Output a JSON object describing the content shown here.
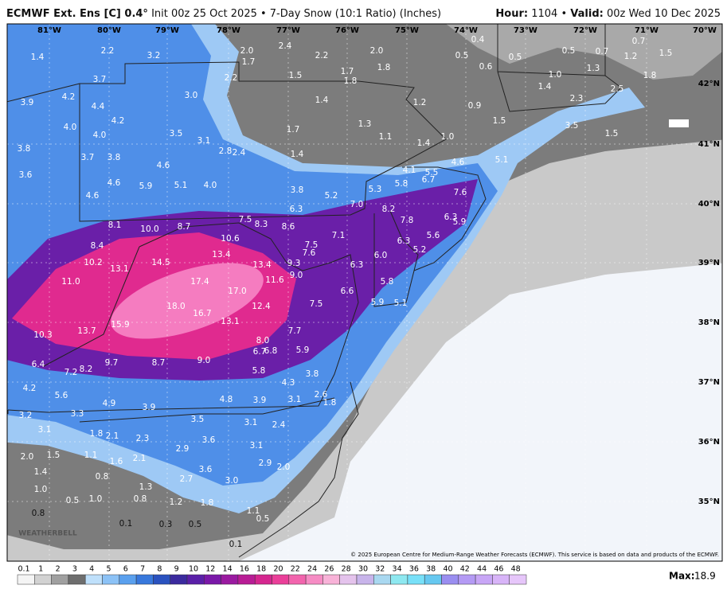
{
  "header": {
    "title_bold": "ECMWF Ext. Ens [C] 0.4°",
    "title": "Init 00z 25 Oct 2025 • 7-Day Snow (10:1 Ratio) (Inches)",
    "hour_label": "Hour:",
    "hour": "1104",
    "separator": "•",
    "valid_label": "Valid:",
    "valid": "00z Wed 10 Dec 2025"
  },
  "map": {
    "longitude_labels": [
      "81°W",
      "80°W",
      "79°W",
      "78°W",
      "77°W",
      "76°W",
      "75°W",
      "74°W",
      "73°W",
      "72°W",
      "71°W",
      "70°W"
    ],
    "latitude_labels": [
      "42°N",
      "41°N",
      "40°N",
      "39°N",
      "38°N",
      "37°N",
      "36°N",
      "35°N"
    ],
    "snow_values": [
      "1.4",
      "2.2",
      "3.2",
      "3.7",
      "2.0",
      "1.7",
      "2.4",
      "2.2",
      "2.0",
      "1.8",
      "1.5",
      "1.7",
      "1.8",
      "2.2",
      "3.9",
      "4.2",
      "4.4",
      "3.0",
      "1.4",
      "1.2",
      "0.9",
      "4.0",
      "4.2",
      "4.0",
      "3.5",
      "3.1",
      "2.8",
      "2.4",
      "1.7",
      "1.3",
      "1.1",
      "1.0",
      "1.4",
      "1.4",
      "3.8",
      "3.7",
      "3.8",
      "4.6",
      "3.6",
      "4.6",
      "5.9",
      "5.1",
      "4.0",
      "3.8",
      "5.2",
      "5.3",
      "5.8",
      "6.7",
      "5.5",
      "4.1",
      "4.6",
      "5.1",
      "7.6",
      "4.6",
      "6.3",
      "7.0",
      "8.2",
      "7.8",
      "6.3",
      "5.9",
      "7.5",
      "8.3",
      "8.6",
      "10.0",
      "8.7",
      "10.6",
      "8.1",
      "7.1",
      "7.5",
      "7.6",
      "6.3",
      "5.6",
      "5.2",
      "8.4",
      "13.4",
      "6.0",
      "10.2",
      "13.1",
      "14.5",
      "13.4",
      "9.3",
      "9.0",
      "6.3",
      "11.0",
      "17.4",
      "17.0",
      "11.6",
      "5.8",
      "6.6",
      "18.0",
      "16.7",
      "12.4",
      "7.5",
      "5.9",
      "5.1",
      "13.1",
      "15.9",
      "13.7",
      "10.3",
      "7.7",
      "8.0",
      "6.7",
      "6.8",
      "5.9",
      "6.4",
      "9.7",
      "8.7",
      "9.0",
      "5.8",
      "4.3",
      "3.8",
      "7.2",
      "8.2",
      "4.2",
      "5.6",
      "4.9",
      "3.9",
      "4.8",
      "3.9",
      "3.1",
      "2.6",
      "1.8",
      "3.2",
      "3.3",
      "3.5",
      "3.1",
      "2.4",
      "3.1",
      "1.8",
      "2.1",
      "2.3",
      "3.6",
      "2.9",
      "3.1",
      "2.0",
      "1.5",
      "1.1",
      "1.6",
      "2.1",
      "3.6",
      "2.9",
      "2.0",
      "1.4",
      "0.8",
      "2.7",
      "3.0",
      "1.0",
      "1.3",
      "0.5",
      "1.0",
      "0.8",
      "1.2",
      "1.8",
      "1.1",
      "0.8",
      "0.5",
      "0.1",
      "0.3",
      "0.5",
      "0.1",
      "0.4",
      "0.5",
      "0.5",
      "0.7",
      "1.2",
      "1.5",
      "0.7",
      "0.5",
      "0.6",
      "1.0",
      "1.3",
      "1.8",
      "1.4",
      "2.3",
      "2.5",
      "1.5",
      "3.5",
      "1.5"
    ],
    "logo": "WEATHERBELL",
    "copyright": "© 2025 European Centre for Medium-Range Weather Forecasts (ECMWF). This service is based on data and products of the ECMWF."
  },
  "legend": {
    "ticks": [
      "0.1",
      "1",
      "2",
      "3",
      "4",
      "5",
      "6",
      "7",
      "8",
      "9",
      "10",
      "12",
      "14",
      "16",
      "18",
      "20",
      "22",
      "24",
      "26",
      "28",
      "30",
      "32",
      "34",
      "36",
      "38",
      "40",
      "42",
      "44",
      "46",
      "48"
    ],
    "max_label": "Max:",
    "max": "18.9"
  }
}
